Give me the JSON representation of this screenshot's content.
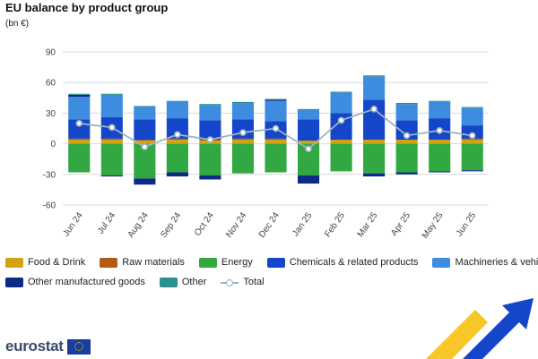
{
  "title": "EU balance by product group",
  "unit": "(bn €)",
  "branding": {
    "logo_text": "eurostat"
  },
  "legend": [
    {
      "name": "Food & Drink",
      "color": "#d4a20c",
      "kind": "bar"
    },
    {
      "name": "Raw materials",
      "color": "#b35a14",
      "kind": "bar"
    },
    {
      "name": "Energy",
      "color": "#32a843",
      "kind": "bar"
    },
    {
      "name": "Chemicals  & related products",
      "color": "#1446c9",
      "kind": "bar"
    },
    {
      "name": "Machineries & vehicles",
      "color": "#3d8ce0",
      "kind": "bar"
    },
    {
      "name": "Other manufactured goods",
      "color": "#0d2a85",
      "kind": "bar"
    },
    {
      "name": "Other",
      "color": "#2a9090",
      "kind": "bar"
    },
    {
      "name": "Total",
      "color": "#9db3c4",
      "kind": "line"
    }
  ],
  "chart_data": {
    "type": "bar",
    "stacked": true,
    "categories": [
      "Jun 24",
      "Jul 24",
      "Aug 24",
      "Sep 24",
      "Oct 24",
      "Nov 24",
      "Dec 24",
      "Jan 25",
      "Feb 25",
      "Mar 25",
      "Apr 25",
      "May 25",
      "Jun 25"
    ],
    "y_ticks": [
      90,
      60,
      30,
      0,
      -30,
      -60
    ],
    "ylim": [
      -60,
      90
    ],
    "grid": true,
    "series": [
      {
        "name": "Food & Drink",
        "color": "#d4a20c",
        "values": [
          4,
          4,
          3,
          4,
          3,
          4,
          4,
          3,
          4,
          4,
          4,
          4,
          4
        ]
      },
      {
        "name": "Raw materials",
        "color": "#b35a14",
        "values": [
          1,
          1,
          1,
          1,
          1,
          1,
          1,
          0,
          0,
          0,
          0,
          0,
          1
        ]
      },
      {
        "name": "Energy",
        "color": "#32a843",
        "values": [
          -28,
          -31,
          -34,
          -28,
          -31,
          -29,
          -28,
          -31,
          -27,
          -29,
          -28,
          -27,
          -26
        ]
      },
      {
        "name": "Chemicals  & related products",
        "color": "#1446c9",
        "values": [
          19,
          21,
          20,
          20,
          19,
          19,
          17,
          21,
          26,
          39,
          19,
          21,
          13
        ]
      },
      {
        "name": "Machineries & vehicles",
        "color": "#3d8ce0",
        "values": [
          22,
          22,
          12,
          16,
          15,
          16,
          20,
          9,
          20,
          23,
          16,
          16,
          17
        ]
      },
      {
        "name": "Other manufactured goods",
        "color": "#0d2a85",
        "values": [
          2,
          -1,
          -6,
          -4,
          -4,
          0,
          1,
          -8,
          0,
          -3,
          -2,
          -1,
          -1
        ]
      },
      {
        "name": "Other",
        "color": "#2a9090",
        "values": [
          1,
          1,
          1,
          1,
          1,
          1,
          1,
          1,
          1,
          1,
          1,
          1,
          1
        ]
      }
    ],
    "line_series": {
      "name": "Total",
      "color": "#9db3c4",
      "values": [
        20,
        16,
        -3,
        9,
        4,
        11,
        15,
        -5,
        23,
        34,
        8,
        13,
        8
      ]
    }
  }
}
